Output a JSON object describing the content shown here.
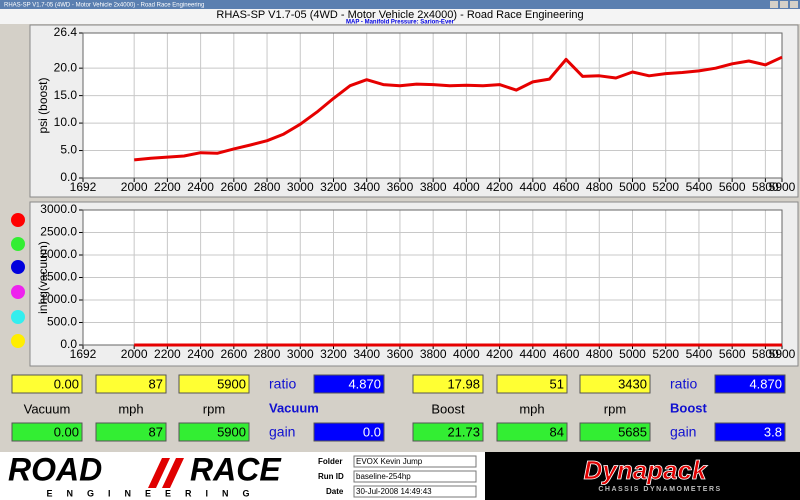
{
  "window_title": "RHAS-SP V1.7-05 (4WD - Motor Vehicle 2x4000) - Road Race Engineering",
  "header": {
    "title": "RHAS-SP V1.7-05  (4WD - Motor Vehicle 2x4000) - Road Race Engineering",
    "subtitle": "MAP - Manifold Pressure: Sarion-Ever"
  },
  "chart_data": [
    {
      "type": "line",
      "y_label": "psi (boost)",
      "x": [
        2000,
        2100,
        2200,
        2300,
        2400,
        2500,
        2600,
        2700,
        2800,
        2900,
        3000,
        3100,
        3200,
        3300,
        3400,
        3500,
        3600,
        3700,
        3800,
        3900,
        4000,
        4100,
        4200,
        4300,
        4400,
        4500,
        4600,
        4700,
        4800,
        4900,
        5000,
        5100,
        5200,
        5300,
        5400,
        5500,
        5600,
        5700,
        5800,
        5900
      ],
      "series": [
        {
          "color": "#e60000",
          "values": [
            3.3,
            3.6,
            3.8,
            4.0,
            4.6,
            4.5,
            5.3,
            6.0,
            6.8,
            8.0,
            9.8,
            12.0,
            14.5,
            16.8,
            17.9,
            17.0,
            16.8,
            17.1,
            17.0,
            16.8,
            16.9,
            16.8,
            17.0,
            16.0,
            17.5,
            18.0,
            21.6,
            18.5,
            18.6,
            18.2,
            19.3,
            18.6,
            19.0,
            19.2,
            19.5,
            20.0,
            20.8,
            21.3,
            20.6,
            22.0
          ]
        }
      ],
      "xlim": [
        1692,
        5900
      ],
      "ylim": [
        0,
        26.4
      ],
      "xticks": [
        1692,
        2000,
        2200,
        2400,
        2600,
        2800,
        3000,
        3200,
        3400,
        3600,
        3800,
        4000,
        4200,
        4400,
        4600,
        4800,
        5000,
        5200,
        5400,
        5600,
        5800,
        5900
      ],
      "yticks": [
        {
          "value": 0,
          "label": "0.0"
        },
        {
          "value": 5,
          "label": "5.0"
        },
        {
          "value": 10,
          "label": "10.0"
        },
        {
          "value": 15,
          "label": "15.0"
        },
        {
          "value": 20,
          "label": "20.0"
        },
        26.4
      ],
      "grid": true
    },
    {
      "type": "line",
      "y_label": "inhg(vacuum)",
      "x": [
        2000,
        5900
      ],
      "series": [
        {
          "color": "#e60000",
          "values": [
            0,
            0
          ]
        }
      ],
      "xlim": [
        1692,
        5900
      ],
      "ylim": [
        0,
        3000
      ],
      "xticks": [
        1692,
        2000,
        2200,
        2400,
        2600,
        2800,
        3000,
        3200,
        3400,
        3600,
        3800,
        4000,
        4200,
        4400,
        4600,
        4800,
        5000,
        5200,
        5400,
        5600,
        5800,
        5900
      ],
      "yticks": [
        {
          "value": 0,
          "label": "0.0"
        },
        {
          "value": 500,
          "label": "500.0"
        },
        {
          "value": 1000,
          "label": "1000.0"
        },
        {
          "value": 1500,
          "label": "1500.0"
        },
        {
          "value": 2000,
          "label": "2000.0"
        },
        {
          "value": 2500,
          "label": "2500.0"
        },
        {
          "value": 3000,
          "label": "3000.0"
        }
      ],
      "grid": true
    }
  ],
  "readouts": [
    {
      "top": [
        "0.00",
        "87",
        "5900"
      ],
      "ratio_label": "ratio",
      "ratio": "4.870",
      "labels": [
        "Vacuum",
        "mph",
        "rpm"
      ],
      "mode": "Vacuum",
      "bottom": [
        "0.00",
        "87",
        "5900"
      ],
      "gain_label": "gain",
      "gain": "0.0"
    },
    {
      "top": [
        "17.98",
        "51",
        "3430"
      ],
      "ratio_label": "ratio",
      "ratio": "4.870",
      "labels": [
        "Boost",
        "mph",
        "rpm"
      ],
      "mode": "Boost",
      "bottom": [
        "21.73",
        "84",
        "5685"
      ],
      "gain_label": "gain",
      "gain": "3.8"
    }
  ],
  "footer": {
    "logo_left": "ROAD",
    "logo_right": "RACE",
    "logo_sub": "ENGINEERING",
    "folder_label": "Folder",
    "folder": "EVOX Kevin Jump",
    "run_label": "Run ID",
    "run": "baseline-254hp",
    "date_label": "Date",
    "date": "30-Jul-2008  14:49:43",
    "brand": "Dynapack",
    "brand_sub": "CHASSIS DYNAMOMETERS"
  }
}
